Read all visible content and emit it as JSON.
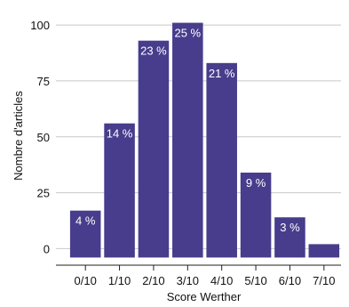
{
  "chart_data": {
    "type": "bar",
    "title": "",
    "xlabel": "Score Werther",
    "ylabel": "Nombre d'articles",
    "categories": [
      "0/10",
      "1/10",
      "2/10",
      "3/10",
      "4/10",
      "5/10",
      "6/10",
      "7/10"
    ],
    "values": [
      17,
      56,
      93,
      101,
      83,
      34,
      14,
      2
    ],
    "data_labels": [
      "4 %",
      "14 %",
      "23 %",
      "25 %",
      "21 %",
      "9 %",
      "3 %",
      ""
    ],
    "y_ticks": [
      "0",
      "25",
      "50",
      "75",
      "100"
    ],
    "y_tick_values": [
      0,
      25,
      50,
      75,
      100
    ],
    "ylim": [
      -7,
      108
    ],
    "grid": "horizontal",
    "legend": "none",
    "colors": {
      "bar": "#473d8c",
      "grid": "#c8c8c8",
      "axis": "#222222"
    }
  }
}
